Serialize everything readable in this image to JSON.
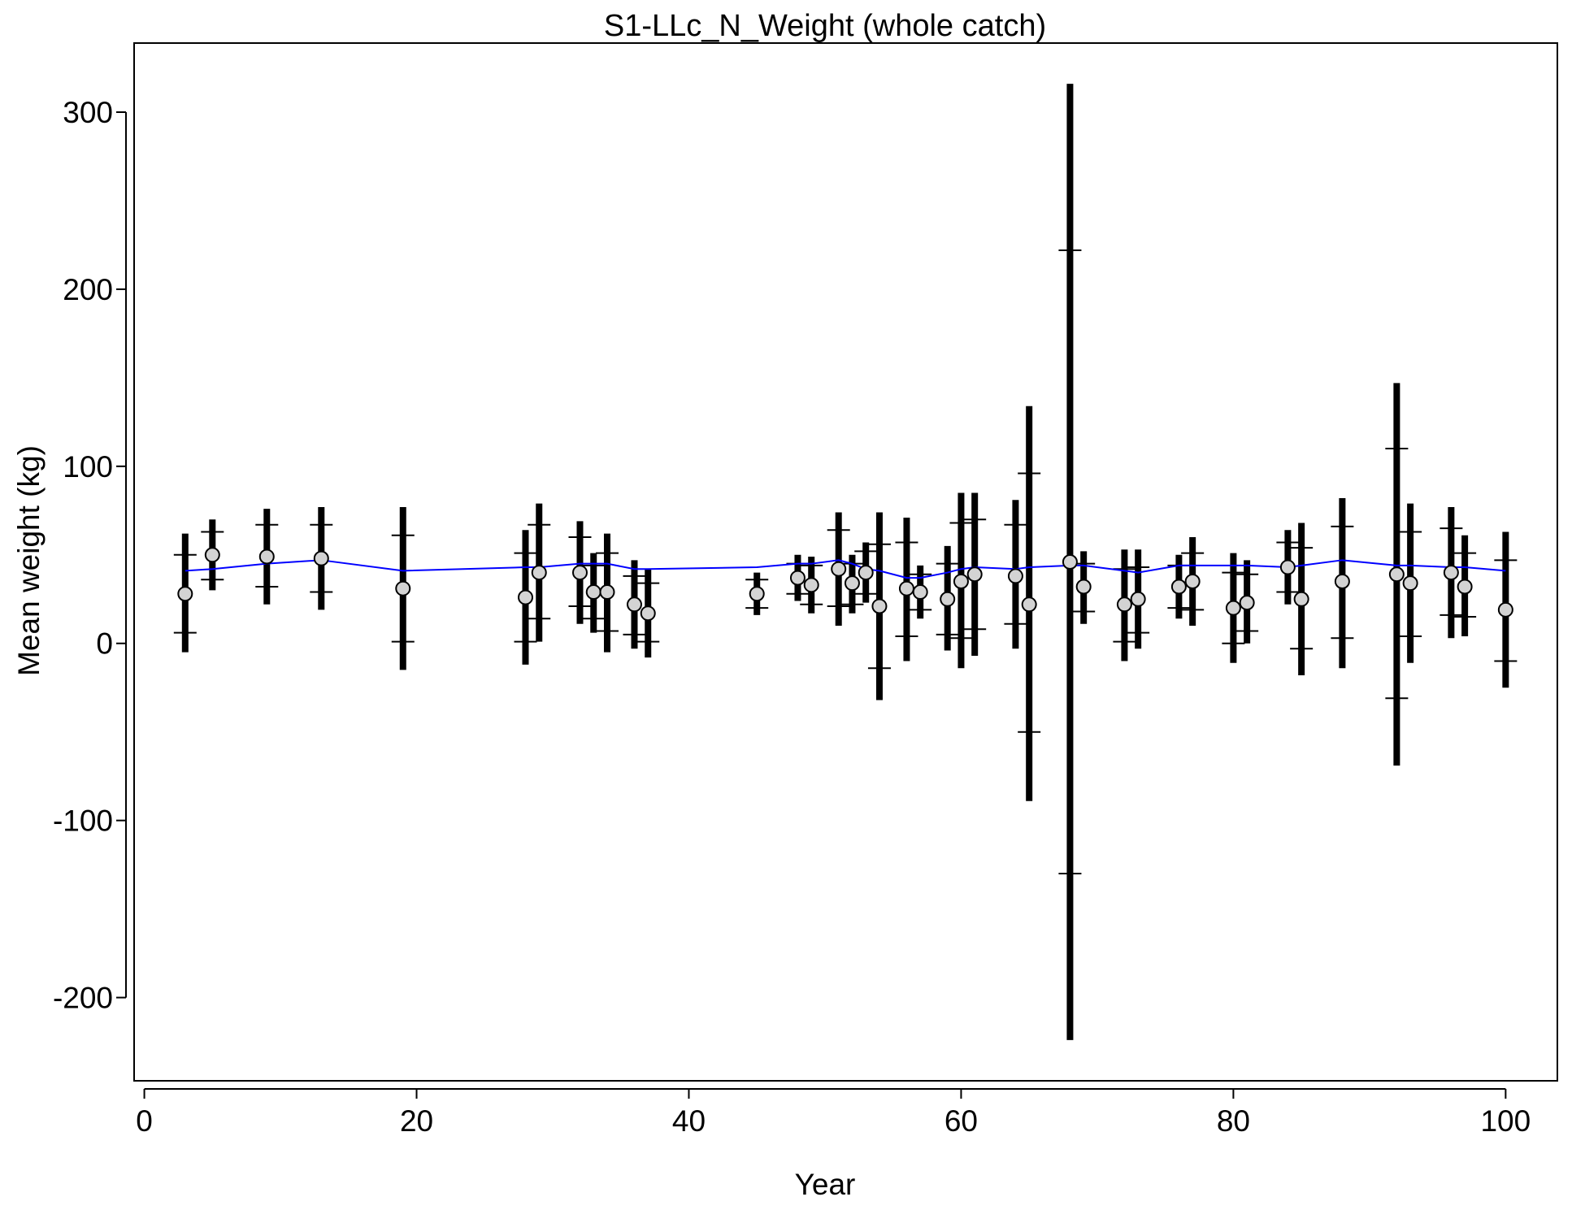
{
  "chart_data": {
    "type": "errorbar",
    "title": "S1-LLc_N_Weight (whole catch)",
    "x_label": "Year",
    "y_label": "Mean weight (kg)",
    "x": [
      3,
      5,
      9,
      13,
      19,
      28,
      29,
      32,
      33,
      34,
      36,
      37,
      45,
      48,
      49,
      51,
      52,
      53,
      54,
      56,
      57,
      59,
      60,
      61,
      64,
      65,
      68,
      69,
      72,
      73,
      76,
      77,
      80,
      81,
      84,
      85,
      88,
      92,
      93,
      96,
      97,
      100
    ],
    "observed": [
      28,
      50,
      49,
      48,
      31,
      26,
      40,
      40,
      29,
      29,
      22,
      17,
      28,
      37,
      33,
      42,
      34,
      40,
      21,
      31,
      29,
      25,
      35,
      39,
      38,
      22,
      46,
      32,
      22,
      25,
      32,
      35,
      20,
      23,
      43,
      25,
      35,
      39,
      34,
      40,
      32,
      19
    ],
    "ci_lower": [
      -5,
      30,
      22,
      19,
      -15,
      -12,
      1,
      11,
      6,
      -5,
      -3,
      -8,
      16,
      24,
      17,
      10,
      17,
      23,
      -32,
      -10,
      14,
      -4,
      -14,
      -7,
      -3,
      -89,
      -224,
      11,
      -10,
      -3,
      14,
      10,
      -11,
      0,
      22,
      -18,
      -14,
      -69,
      -11,
      3,
      4,
      -25
    ],
    "ci_upper": [
      62,
      70,
      76,
      77,
      77,
      64,
      79,
      69,
      51,
      62,
      47,
      42,
      40,
      50,
      49,
      74,
      50,
      57,
      74,
      71,
      44,
      55,
      85,
      85,
      81,
      134,
      316,
      52,
      53,
      53,
      50,
      60,
      51,
      47,
      64,
      68,
      82,
      147,
      79,
      77,
      61,
      63
    ],
    "se_lower": [
      6,
      36,
      32,
      29,
      1,
      1,
      14,
      21,
      14,
      7,
      5,
      1,
      20,
      28,
      22,
      21,
      22,
      28,
      -14,
      4,
      19,
      5,
      3,
      8,
      11,
      -50,
      -130,
      18,
      1,
      6,
      20,
      19,
      0,
      7,
      29,
      -3,
      3,
      -31,
      4,
      16,
      15,
      -10
    ],
    "se_upper": [
      50,
      63,
      67,
      67,
      61,
      51,
      67,
      60,
      44,
      51,
      38,
      34,
      36,
      45,
      44,
      64,
      45,
      52,
      56,
      57,
      39,
      45,
      68,
      70,
      67,
      96,
      222,
      45,
      42,
      43,
      44,
      51,
      40,
      39,
      57,
      54,
      66,
      110,
      63,
      65,
      51,
      47
    ],
    "expected": [
      41,
      42,
      45,
      47,
      41,
      43,
      43,
      45,
      45,
      45,
      42,
      42,
      43,
      45,
      45,
      47,
      45,
      42,
      41,
      37,
      37,
      40,
      42,
      43,
      42,
      43,
      44,
      44,
      41,
      40,
      44,
      44,
      44,
      44,
      43,
      44,
      47,
      44,
      44,
      43,
      43,
      41
    ],
    "bar_color": "#000000",
    "point_color": "#d3d3d3",
    "line_color": "#0000ff",
    "xlim": [
      -0.75,
      103.8
    ],
    "ylim": [
      -247,
      339
    ],
    "xticks": [
      0,
      20,
      40,
      60,
      80,
      100
    ],
    "yticks": [
      -200,
      -100,
      0,
      100,
      200,
      300
    ]
  }
}
